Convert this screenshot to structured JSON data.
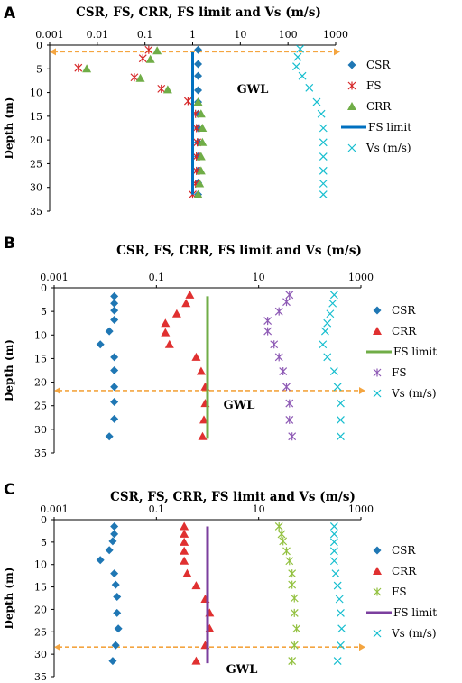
{
  "chart_data": [
    {
      "panel": "A",
      "type": "scatter",
      "title": "CSR, FS, CRR,  FS limit and Vs (m/s)",
      "xscale": "log",
      "xlim": [
        0.001,
        1000
      ],
      "xticks": [
        "0.001",
        "0.01",
        "0.1",
        "1",
        "10",
        "100",
        "1000"
      ],
      "ylabel": "Depth (m)",
      "ylim": [
        0,
        35
      ],
      "yreversed": true,
      "yticks": [
        "0",
        "5",
        "10",
        "15",
        "20",
        "25",
        "30",
        "35"
      ],
      "gwl": {
        "label": "GWL",
        "depth": 1.4
      },
      "legend": [
        "CSR",
        "FS",
        "CRR",
        "FS limit",
        "Vs (m/s)"
      ],
      "series": [
        {
          "name": "CSR",
          "marker": "diamond",
          "color": "#1f77b4",
          "x": [
            1.3,
            1.3,
            1.3,
            1.3,
            1.3,
            1.3,
            1.3,
            1.3,
            1.3,
            1.3,
            1.3,
            1.3
          ],
          "y": [
            1,
            4,
            6.5,
            9.5,
            12,
            14.5,
            17.5,
            20.5,
            23.5,
            26.5,
            29,
            31.5
          ]
        },
        {
          "name": "FS",
          "marker": "x",
          "color": "#d62728",
          "x": [
            0.12,
            0.09,
            0.004,
            0.06,
            0.22,
            0.8,
            1.15,
            1.2,
            1.25,
            1.2,
            1.2,
            1.15,
            1.0
          ],
          "y": [
            1,
            2.8,
            4.8,
            6.8,
            9.2,
            11.8,
            14.5,
            17.5,
            20.5,
            23.5,
            26.5,
            29.2,
            31.5
          ]
        },
        {
          "name": "CRR",
          "marker": "triangle",
          "color": "#70ad47",
          "x": [
            0.18,
            0.13,
            0.006,
            0.08,
            0.3,
            1.3,
            1.5,
            1.6,
            1.6,
            1.5,
            1.5,
            1.4,
            1.3
          ],
          "y": [
            1.2,
            3,
            5,
            7,
            9.4,
            12,
            14.5,
            17.5,
            20.5,
            23.5,
            26.5,
            29.2,
            31.5
          ]
        },
        {
          "name": "FS limit",
          "marker": "line",
          "color": "#0070c0",
          "x": [
            1,
            1
          ],
          "y": [
            1.5,
            31.5
          ]
        },
        {
          "name": "Vs (m/s)",
          "marker": "x-cross",
          "color": "#17becf",
          "x": [
            180,
            160,
            150,
            200,
            280,
            400,
            500,
            550,
            550,
            550,
            550,
            550,
            550
          ],
          "y": [
            0.8,
            2.5,
            4.5,
            6.5,
            9,
            12,
            14.5,
            17.5,
            20.5,
            23.5,
            26.5,
            29.2,
            31.5
          ]
        }
      ]
    },
    {
      "panel": "B",
      "type": "scatter",
      "title": "CSR, FS, CRR,  FS limit and Vs (m/s)",
      "xscale": "log",
      "xlim": [
        0.001,
        1000
      ],
      "xticks": [
        "0.001",
        "0.1",
        "10",
        "1000"
      ],
      "ylabel": "Depth (m)",
      "ylim": [
        0,
        35
      ],
      "yreversed": true,
      "yticks": [
        "0",
        "5",
        "10",
        "15",
        "20",
        "25",
        "30",
        "35"
      ],
      "gwl": {
        "label": "GWL",
        "depth": 21.8
      },
      "legend": [
        "CSR",
        "CRR",
        "FS limit",
        "FS",
        "Vs (m/s)"
      ],
      "series": [
        {
          "name": "CSR",
          "marker": "diamond",
          "color": "#1f77b4",
          "x": [
            0.015,
            0.015,
            0.015,
            0.015,
            0.012,
            0.008,
            0.015,
            0.015,
            0.015,
            0.015,
            0.015,
            0.012
          ],
          "y": [
            1.8,
            3.3,
            4.8,
            6.8,
            9.2,
            12,
            14.7,
            17.5,
            21,
            24.2,
            27.8,
            31.5
          ]
        },
        {
          "name": "CRR",
          "marker": "triangle",
          "color": "#e03030",
          "x": [
            0.45,
            0.38,
            0.25,
            0.15,
            0.15,
            0.18,
            0.6,
            0.75,
            0.9,
            0.9,
            0.85,
            0.8
          ],
          "y": [
            1.5,
            3.3,
            5.5,
            7.5,
            9.5,
            12,
            14.7,
            17.7,
            21,
            24.5,
            28,
            31.5
          ]
        },
        {
          "name": "FS limit",
          "marker": "line",
          "color": "#70ad47",
          "x": [
            1,
            1
          ],
          "y": [
            1.8,
            32
          ]
        },
        {
          "name": "FS",
          "marker": "x",
          "color": "#8e5ab5",
          "x": [
            40,
            35,
            25,
            15,
            15,
            20,
            25,
            30,
            35,
            40,
            40,
            45
          ],
          "y": [
            1.5,
            3,
            5,
            7,
            9.2,
            12,
            14.7,
            17.7,
            21,
            24.5,
            28,
            31.5
          ]
        },
        {
          "name": "Vs (m/s)",
          "marker": "x-cross",
          "color": "#17becf",
          "x": [
            300,
            280,
            250,
            220,
            200,
            180,
            220,
            300,
            350,
            400,
            400,
            400
          ],
          "y": [
            1.5,
            3.3,
            5.5,
            7.5,
            9.2,
            12,
            14.7,
            17.7,
            21,
            24.5,
            28,
            31.5
          ]
        }
      ]
    },
    {
      "panel": "C",
      "type": "scatter",
      "title": "CSR, FS, CRR,  FS limit and Vs (m/s)",
      "xscale": "log",
      "xlim": [
        0.001,
        1000
      ],
      "xticks": [
        "0.001",
        "0.1",
        "10",
        "1000"
      ],
      "ylabel": "Depth (m)",
      "ylim": [
        0,
        35
      ],
      "yreversed": true,
      "yticks": [
        "0",
        "5",
        "10",
        "15",
        "20",
        "25",
        "30",
        "35"
      ],
      "gwl": {
        "label": "GWL",
        "depth": 28.4
      },
      "legend": [
        "CSR",
        "CRR",
        "FS",
        "FS limit",
        "Vs (m/s)"
      ],
      "series": [
        {
          "name": "CSR",
          "marker": "diamond",
          "color": "#1f77b4",
          "x": [
            0.015,
            0.015,
            0.014,
            0.012,
            0.008,
            0.015,
            0.016,
            0.017,
            0.017,
            0.018,
            0.016,
            0.014
          ],
          "y": [
            1.5,
            3.2,
            4.8,
            6.8,
            9,
            12,
            14.5,
            17.2,
            20.8,
            24.3,
            28,
            31.5
          ]
        },
        {
          "name": "CRR",
          "marker": "triangle",
          "color": "#e03030",
          "x": [
            0.35,
            0.35,
            0.35,
            0.35,
            0.35,
            0.4,
            0.6,
            0.9,
            1.1,
            1.1,
            0.9,
            0.6
          ],
          "y": [
            1.5,
            3.2,
            5,
            7,
            9.2,
            12,
            14.7,
            17.7,
            20.8,
            24.3,
            28,
            31.5
          ]
        },
        {
          "name": "FS",
          "marker": "x",
          "color": "#92c13f",
          "x": [
            25,
            28,
            30,
            35,
            40,
            45,
            45,
            50,
            50,
            55,
            50,
            45
          ],
          "y": [
            1.5,
            3.2,
            4.8,
            7,
            9.2,
            12,
            14.5,
            17.5,
            20.8,
            24.3,
            28,
            31.5
          ]
        },
        {
          "name": "FS limit",
          "marker": "line",
          "color": "#7b3f9e",
          "x": [
            1,
            1
          ],
          "y": [
            1.5,
            32
          ]
        },
        {
          "name": "Vs (m/s)",
          "marker": "x-cross",
          "color": "#17becf",
          "x": [
            300,
            300,
            300,
            300,
            300,
            320,
            350,
            380,
            400,
            420,
            400,
            350
          ],
          "y": [
            1.5,
            3.2,
            5,
            7,
            9.2,
            12,
            14.7,
            17.7,
            20.8,
            24.3,
            28,
            31.5
          ]
        }
      ]
    }
  ]
}
